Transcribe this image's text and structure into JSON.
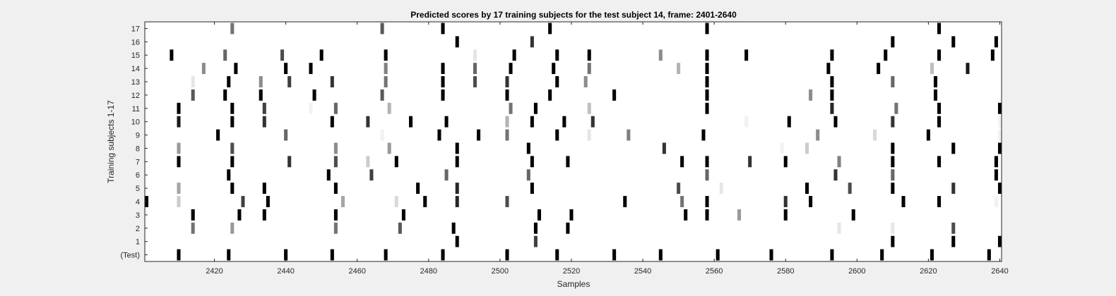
{
  "chart_data": {
    "type": "heatmap",
    "title": "Predicted scores by 17 training subjects for the test subject 14, frame: 2401-2640",
    "xlabel": "Samples",
    "ylabel": "Training subjects 1-17",
    "xlim": [
      2401,
      2640
    ],
    "x_ticks": [
      "2420",
      "2440",
      "2460",
      "2480",
      "2500",
      "2520",
      "2540",
      "2560",
      "2580",
      "2600",
      "2620",
      "2640"
    ],
    "x_tick_values": [
      2420,
      2440,
      2460,
      2480,
      2500,
      2520,
      2540,
      2560,
      2580,
      2600,
      2620,
      2640
    ],
    "y_labels": [
      "(Test)",
      "1",
      "2",
      "3",
      "4",
      "5",
      "6",
      "7",
      "8",
      "9",
      "10",
      "11",
      "12",
      "13",
      "14",
      "15",
      "16",
      "17"
    ],
    "colormap": "gray (white = 0, black = 1)",
    "grid": false,
    "rows": [
      {
        "label": "(Test)",
        "marks": [
          [
            2410,
            1
          ],
          [
            2424,
            1
          ],
          [
            2440,
            1
          ],
          [
            2453,
            1
          ],
          [
            2468,
            1
          ],
          [
            2484,
            1
          ],
          [
            2502,
            1
          ],
          [
            2516,
            1
          ],
          [
            2532,
            1
          ],
          [
            2545,
            1
          ],
          [
            2561,
            1
          ],
          [
            2576,
            1
          ],
          [
            2593,
            1
          ],
          [
            2607,
            1
          ],
          [
            2621,
            1
          ],
          [
            2637,
            1
          ]
        ]
      },
      {
        "label": "1",
        "marks": [
          [
            2488,
            1
          ],
          [
            2510,
            0.75
          ],
          [
            2610,
            1
          ],
          [
            2627,
            1
          ],
          [
            2640,
            1
          ]
        ]
      },
      {
        "label": "2",
        "marks": [
          [
            2414,
            0.55
          ],
          [
            2425,
            0.4
          ],
          [
            2454,
            0.55
          ],
          [
            2472,
            0.65
          ],
          [
            2487,
            1
          ],
          [
            2510,
            1
          ],
          [
            2519,
            1
          ],
          [
            2595,
            0.1
          ],
          [
            2610,
            0.1
          ],
          [
            2627,
            0.7
          ]
        ]
      },
      {
        "label": "3",
        "marks": [
          [
            2414,
            1
          ],
          [
            2427,
            1
          ],
          [
            2434,
            1
          ],
          [
            2454,
            1
          ],
          [
            2473,
            1
          ],
          [
            2511,
            1
          ],
          [
            2520,
            1
          ],
          [
            2552,
            1
          ],
          [
            2558,
            1
          ],
          [
            2567,
            0.4
          ],
          [
            2580,
            1
          ],
          [
            2599,
            1
          ]
        ]
      },
      {
        "label": "4",
        "marks": [
          [
            2401,
            1
          ],
          [
            2410,
            0.2
          ],
          [
            2428,
            0.75
          ],
          [
            2435,
            1
          ],
          [
            2456,
            0.35
          ],
          [
            2471,
            0.15
          ],
          [
            2479,
            1
          ],
          [
            2488,
            0.85
          ],
          [
            2502,
            0.7
          ],
          [
            2535,
            1
          ],
          [
            2551,
            0.55
          ],
          [
            2558,
            1
          ],
          [
            2580,
            0.8
          ],
          [
            2587,
            1
          ],
          [
            2613,
            1
          ],
          [
            2623,
            1
          ],
          [
            2639,
            0.05
          ]
        ]
      },
      {
        "label": "5",
        "marks": [
          [
            2410,
            0.35
          ],
          [
            2425,
            1
          ],
          [
            2434,
            1
          ],
          [
            2454,
            1
          ],
          [
            2477,
            1
          ],
          [
            2488,
            0.85
          ],
          [
            2509,
            1
          ],
          [
            2550,
            0.7
          ],
          [
            2562,
            0.1
          ],
          [
            2586,
            1
          ],
          [
            2598,
            0.7
          ],
          [
            2610,
            1
          ],
          [
            2627,
            0.8
          ],
          [
            2640,
            1
          ]
        ]
      },
      {
        "label": "6",
        "marks": [
          [
            2424,
            1
          ],
          [
            2452,
            1
          ],
          [
            2464,
            0.75
          ],
          [
            2485,
            0.6
          ],
          [
            2508,
            0.6
          ],
          [
            2558,
            0.6
          ],
          [
            2594,
            0.8
          ],
          [
            2610,
            0.6
          ],
          [
            2639,
            1
          ]
        ]
      },
      {
        "label": "7",
        "marks": [
          [
            2410,
            1
          ],
          [
            2425,
            1
          ],
          [
            2441,
            0.8
          ],
          [
            2454,
            0.7
          ],
          [
            2463,
            0.2
          ],
          [
            2471,
            1
          ],
          [
            2488,
            1
          ],
          [
            2509,
            1
          ],
          [
            2519,
            1
          ],
          [
            2551,
            1
          ],
          [
            2558,
            1
          ],
          [
            2570,
            0.8
          ],
          [
            2580,
            1
          ],
          [
            2595,
            0.5
          ],
          [
            2610,
            1
          ],
          [
            2623,
            1
          ],
          [
            2639,
            1
          ]
        ]
      },
      {
        "label": "8",
        "marks": [
          [
            2410,
            0.4
          ],
          [
            2425,
            0.7
          ],
          [
            2454,
            0.45
          ],
          [
            2469,
            0.4
          ],
          [
            2488,
            1
          ],
          [
            2508,
            1
          ],
          [
            2546,
            0.8
          ],
          [
            2579,
            0.05
          ],
          [
            2586,
            0.2
          ],
          [
            2610,
            1
          ],
          [
            2627,
            1
          ],
          [
            2640,
            1
          ]
        ]
      },
      {
        "label": "9",
        "marks": [
          [
            2421,
            1
          ],
          [
            2440,
            0.6
          ],
          [
            2467,
            0.05
          ],
          [
            2483,
            1
          ],
          [
            2494,
            1
          ],
          [
            2502,
            0.55
          ],
          [
            2516,
            1
          ],
          [
            2525,
            0.1
          ],
          [
            2536,
            0.5
          ],
          [
            2557,
            1
          ],
          [
            2589,
            0.45
          ],
          [
            2605,
            0.15
          ],
          [
            2620,
            1
          ],
          [
            2640,
            0.05
          ]
        ]
      },
      {
        "label": "10",
        "marks": [
          [
            2410,
            0.9
          ],
          [
            2425,
            1
          ],
          [
            2434,
            0.8
          ],
          [
            2453,
            1
          ],
          [
            2463,
            0.8
          ],
          [
            2475,
            1
          ],
          [
            2485,
            1
          ],
          [
            2502,
            0.3
          ],
          [
            2509,
            1
          ],
          [
            2518,
            1
          ],
          [
            2526,
            0.8
          ],
          [
            2569,
            0.05
          ],
          [
            2581,
            1
          ],
          [
            2594,
            1
          ],
          [
            2610,
            0.8
          ],
          [
            2623,
            1
          ],
          [
            2640,
            0.05
          ]
        ]
      },
      {
        "label": "11",
        "marks": [
          [
            2410,
            1
          ],
          [
            2425,
            1
          ],
          [
            2434,
            0.75
          ],
          [
            2447,
            0.05
          ],
          [
            2454,
            0.6
          ],
          [
            2469,
            0.3
          ],
          [
            2503,
            0.55
          ],
          [
            2510,
            1
          ],
          [
            2525,
            0.25
          ],
          [
            2558,
            1
          ],
          [
            2593,
            0.85
          ],
          [
            2611,
            0.55
          ],
          [
            2623,
            1
          ],
          [
            2640,
            1
          ]
        ]
      },
      {
        "label": "12",
        "marks": [
          [
            2414,
            0.65
          ],
          [
            2423,
            1
          ],
          [
            2433,
            1
          ],
          [
            2448,
            1
          ],
          [
            2467,
            0.65
          ],
          [
            2484,
            1
          ],
          [
            2502,
            1
          ],
          [
            2514,
            1
          ],
          [
            2532,
            1
          ],
          [
            2558,
            1
          ],
          [
            2587,
            0.45
          ],
          [
            2593,
            1
          ],
          [
            2622,
            1
          ]
        ]
      },
      {
        "label": "13",
        "marks": [
          [
            2414,
            0.1
          ],
          [
            2424,
            1
          ],
          [
            2433,
            0.45
          ],
          [
            2441,
            0.75
          ],
          [
            2453,
            0.8
          ],
          [
            2468,
            0.55
          ],
          [
            2484,
            1
          ],
          [
            2493,
            0.7
          ],
          [
            2502,
            0.8
          ],
          [
            2516,
            1
          ],
          [
            2524,
            0.45
          ],
          [
            2558,
            1
          ],
          [
            2593,
            1
          ],
          [
            2610,
            0.6
          ],
          [
            2622,
            1
          ]
        ]
      },
      {
        "label": "14",
        "marks": [
          [
            2417,
            0.45
          ],
          [
            2426,
            1
          ],
          [
            2440,
            1
          ],
          [
            2447,
            1
          ],
          [
            2468,
            0.5
          ],
          [
            2484,
            1
          ],
          [
            2493,
            0.6
          ],
          [
            2503,
            1
          ],
          [
            2515,
            1
          ],
          [
            2525,
            0.55
          ],
          [
            2550,
            0.3
          ],
          [
            2558,
            1
          ],
          [
            2592,
            1
          ],
          [
            2606,
            1
          ],
          [
            2621,
            0.25
          ],
          [
            2631,
            0.9
          ]
        ]
      },
      {
        "label": "15",
        "marks": [
          [
            2408,
            1
          ],
          [
            2423,
            0.6
          ],
          [
            2439,
            0.7
          ],
          [
            2450,
            1
          ],
          [
            2468,
            1
          ],
          [
            2493,
            0.1
          ],
          [
            2504,
            1
          ],
          [
            2516,
            1
          ],
          [
            2525,
            1
          ],
          [
            2545,
            0.45
          ],
          [
            2558,
            1
          ],
          [
            2569,
            1
          ],
          [
            2593,
            1
          ],
          [
            2608,
            1
          ],
          [
            2623,
            1
          ],
          [
            2638,
            1
          ]
        ]
      },
      {
        "label": "16",
        "marks": [
          [
            2488,
            1
          ],
          [
            2509,
            0.8
          ],
          [
            2610,
            1
          ],
          [
            2627,
            1
          ],
          [
            2639,
            1
          ]
        ]
      },
      {
        "label": "17",
        "marks": [
          [
            2425,
            0.55
          ],
          [
            2467,
            0.65
          ],
          [
            2484,
            1
          ],
          [
            2514,
            1
          ],
          [
            2558,
            1
          ],
          [
            2623,
            1
          ]
        ]
      }
    ]
  }
}
